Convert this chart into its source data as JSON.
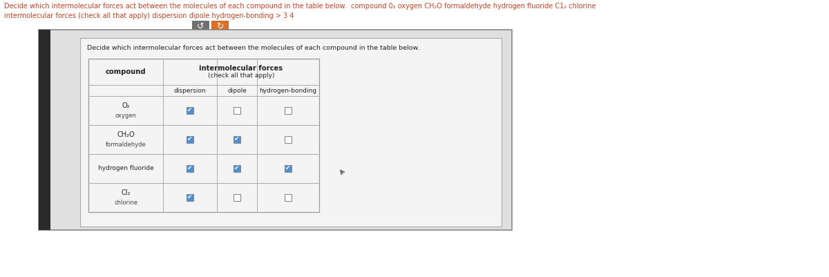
{
  "title_text": "Decide which intermolecular forces act between the molecules of each compound in the table below.",
  "header_compound": "compound",
  "header_forces": "intermolecular forces",
  "header_forces_sub": "(check all that apply)",
  "col_headers": [
    "dispersion",
    "dipole",
    "hydrogen-bonding"
  ],
  "rows": [
    {
      "formula": "O₂",
      "name": "oxygen",
      "checks": [
        true,
        false,
        false
      ]
    },
    {
      "formula": "CH₂O",
      "name": "formaldehyde",
      "checks": [
        true,
        true,
        false
      ]
    },
    {
      "formula": "hydrogen fluoride",
      "name": null,
      "checks": [
        true,
        true,
        true
      ]
    },
    {
      "formula": "Cl₂",
      "name": "chlorine",
      "checks": [
        true,
        false,
        false
      ]
    }
  ],
  "checked_color": "#4a90d9",
  "unchecked_color": "#ffffff",
  "top_text_color": "#d04020",
  "reset_btn_color": "#707070",
  "refresh_btn_color": "#e07020",
  "card_bg": "#e0e0e0",
  "paper_bg": "#f4f4f4",
  "stripe_color": "#2a2a2a",
  "table_line_color": "#aaaaaa",
  "text_color": "#222222",
  "subtext_color": "#444444",
  "meta_line1": "Decide which intermolecular forces act between the molecules of each compound in the table below.  compound 0₂ oxygen CH₂O formaldehyde hydrogen fluoride C1₂ chlorine",
  "meta_line2": "intermolecular forces (check all that apply) dispersion dipole hydrogen-bonding > 3 4"
}
